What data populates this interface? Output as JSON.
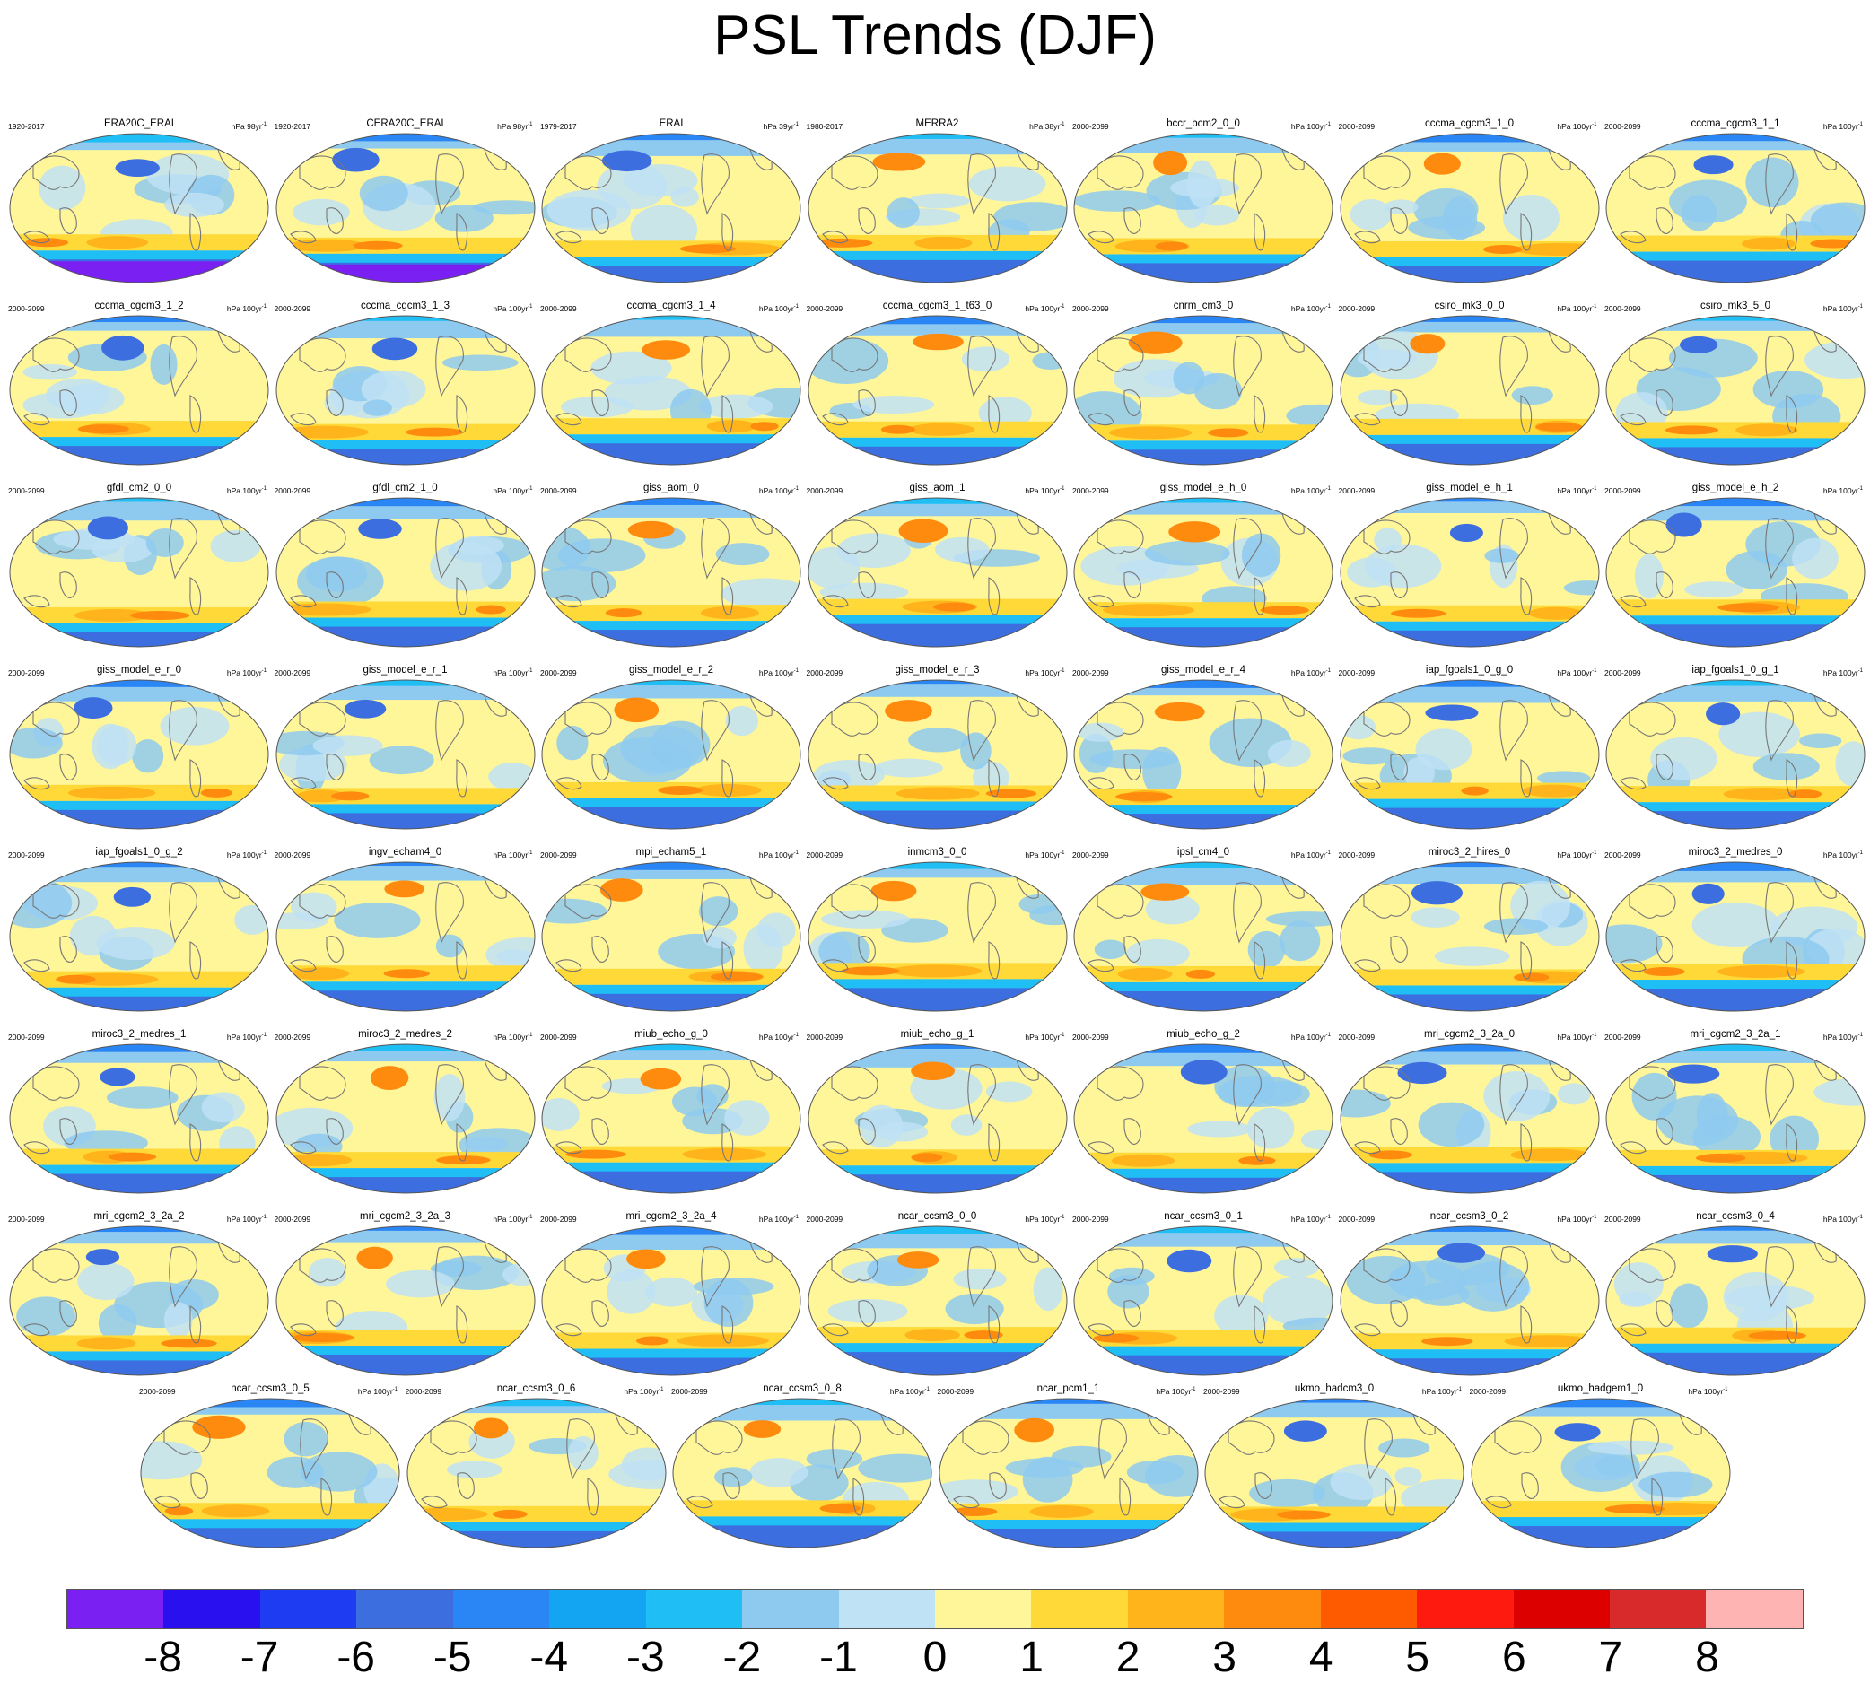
{
  "title": "PSL Trends (DJF)",
  "units_prefix": "hPa",
  "colorbar": {
    "colors": [
      "#7b20f2",
      "#2811ee",
      "#1e3cf2",
      "#3c6ee0",
      "#2b86f5",
      "#14a5f2",
      "#1fbff5",
      "#8ecaf0",
      "#bfe2f5",
      "#fff599",
      "#fed938",
      "#feb41a",
      "#fe8a0e",
      "#fe5a00",
      "#fe1a0e",
      "#dd0000",
      "#d82a2a",
      "#ffb4b4"
    ],
    "labels": [
      "-8",
      "-7",
      "-6",
      "-5",
      "-4",
      "-3",
      "-2",
      "-1",
      "0",
      "1",
      "2",
      "3",
      "4",
      "5",
      "6",
      "7",
      "8"
    ]
  },
  "panels": [
    {
      "name": "ERA20C_ERAI",
      "period": "1920-2017",
      "units": "hPa 98yr",
      "exp": "-1",
      "row": 0,
      "col": 0
    },
    {
      "name": "CERA20C_ERAI",
      "period": "1920-2017",
      "units": "hPa 98yr",
      "exp": "-1",
      "row": 0,
      "col": 1
    },
    {
      "name": "ERAI",
      "period": "1979-2017",
      "units": "hPa 39yr",
      "exp": "-1",
      "row": 0,
      "col": 2
    },
    {
      "name": "MERRA2",
      "period": "1980-2017",
      "units": "hPa 38yr",
      "exp": "-1",
      "row": 0,
      "col": 3
    },
    {
      "name": "bccr_bcm2_0_0",
      "period": "2000-2099",
      "units": "hPa 100yr",
      "exp": "-1",
      "row": 0,
      "col": 4
    },
    {
      "name": "cccma_cgcm3_1_0",
      "period": "2000-2099",
      "units": "hPa 100yr",
      "exp": "-1",
      "row": 0,
      "col": 5
    },
    {
      "name": "cccma_cgcm3_1_1",
      "period": "2000-2099",
      "units": "hPa 100yr",
      "exp": "-1",
      "row": 0,
      "col": 6
    },
    {
      "name": "cccma_cgcm3_1_2",
      "period": "2000-2099",
      "units": "hPa 100yr",
      "exp": "-1",
      "row": 1,
      "col": 0
    },
    {
      "name": "cccma_cgcm3_1_3",
      "period": "2000-2099",
      "units": "hPa 100yr",
      "exp": "-1",
      "row": 1,
      "col": 1
    },
    {
      "name": "cccma_cgcm3_1_4",
      "period": "2000-2099",
      "units": "hPa 100yr",
      "exp": "-1",
      "row": 1,
      "col": 2
    },
    {
      "name": "cccma_cgcm3_1_t63_0",
      "period": "2000-2099",
      "units": "hPa 100yr",
      "exp": "-1",
      "row": 1,
      "col": 3
    },
    {
      "name": "cnrm_cm3_0",
      "period": "2000-2099",
      "units": "hPa 100yr",
      "exp": "-1",
      "row": 1,
      "col": 4
    },
    {
      "name": "csiro_mk3_0_0",
      "period": "2000-2099",
      "units": "hPa 100yr",
      "exp": "-1",
      "row": 1,
      "col": 5
    },
    {
      "name": "csiro_mk3_5_0",
      "period": "2000-2099",
      "units": "hPa 100yr",
      "exp": "-1",
      "row": 1,
      "col": 6
    },
    {
      "name": "gfdl_cm2_0_0",
      "period": "2000-2099",
      "units": "hPa 100yr",
      "exp": "-1",
      "row": 2,
      "col": 0
    },
    {
      "name": "gfdl_cm2_1_0",
      "period": "2000-2099",
      "units": "hPa 100yr",
      "exp": "-1",
      "row": 2,
      "col": 1
    },
    {
      "name": "giss_aom_0",
      "period": "2000-2099",
      "units": "hPa 100yr",
      "exp": "-1",
      "row": 2,
      "col": 2
    },
    {
      "name": "giss_aom_1",
      "period": "2000-2099",
      "units": "hPa 100yr",
      "exp": "-1",
      "row": 2,
      "col": 3
    },
    {
      "name": "giss_model_e_h_0",
      "period": "2000-2099",
      "units": "hPa 100yr",
      "exp": "-1",
      "row": 2,
      "col": 4
    },
    {
      "name": "giss_model_e_h_1",
      "period": "2000-2099",
      "units": "hPa 100yr",
      "exp": "-1",
      "row": 2,
      "col": 5
    },
    {
      "name": "giss_model_e_h_2",
      "period": "2000-2099",
      "units": "hPa 100yr",
      "exp": "-1",
      "row": 2,
      "col": 6
    },
    {
      "name": "giss_model_e_r_0",
      "period": "2000-2099",
      "units": "hPa 100yr",
      "exp": "-1",
      "row": 3,
      "col": 0
    },
    {
      "name": "giss_model_e_r_1",
      "period": "2000-2099",
      "units": "hPa 100yr",
      "exp": "-1",
      "row": 3,
      "col": 1
    },
    {
      "name": "giss_model_e_r_2",
      "period": "2000-2099",
      "units": "hPa 100yr",
      "exp": "-1",
      "row": 3,
      "col": 2
    },
    {
      "name": "giss_model_e_r_3",
      "period": "2000-2099",
      "units": "hPa 100yr",
      "exp": "-1",
      "row": 3,
      "col": 3
    },
    {
      "name": "giss_model_e_r_4",
      "period": "2000-2099",
      "units": "hPa 100yr",
      "exp": "-1",
      "row": 3,
      "col": 4
    },
    {
      "name": "iap_fgoals1_0_g_0",
      "period": "2000-2099",
      "units": "hPa 100yr",
      "exp": "-1",
      "row": 3,
      "col": 5
    },
    {
      "name": "iap_fgoals1_0_g_1",
      "period": "2000-2099",
      "units": "hPa 100yr",
      "exp": "-1",
      "row": 3,
      "col": 6
    },
    {
      "name": "iap_fgoals1_0_g_2",
      "period": "2000-2099",
      "units": "hPa 100yr",
      "exp": "-1",
      "row": 4,
      "col": 0
    },
    {
      "name": "ingv_echam4_0",
      "period": "2000-2099",
      "units": "hPa 100yr",
      "exp": "-1",
      "row": 4,
      "col": 1
    },
    {
      "name": "mpi_echam5_1",
      "period": "2000-2099",
      "units": "hPa 100yr",
      "exp": "-1",
      "row": 4,
      "col": 2
    },
    {
      "name": "inmcm3_0_0",
      "period": "2000-2099",
      "units": "hPa 100yr",
      "exp": "-1",
      "row": 4,
      "col": 3
    },
    {
      "name": "ipsl_cm4_0",
      "period": "2000-2099",
      "units": "hPa 100yr",
      "exp": "-1",
      "row": 4,
      "col": 4
    },
    {
      "name": "miroc3_2_hires_0",
      "period": "2000-2099",
      "units": "hPa 100yr",
      "exp": "-1",
      "row": 4,
      "col": 5
    },
    {
      "name": "miroc3_2_medres_0",
      "period": "2000-2099",
      "units": "hPa 100yr",
      "exp": "-1",
      "row": 4,
      "col": 6
    },
    {
      "name": "miroc3_2_medres_1",
      "period": "2000-2099",
      "units": "hPa 100yr",
      "exp": "-1",
      "row": 5,
      "col": 0
    },
    {
      "name": "miroc3_2_medres_2",
      "period": "2000-2099",
      "units": "hPa 100yr",
      "exp": "-1",
      "row": 5,
      "col": 1
    },
    {
      "name": "miub_echo_g_0",
      "period": "2000-2099",
      "units": "hPa 100yr",
      "exp": "-1",
      "row": 5,
      "col": 2
    },
    {
      "name": "miub_echo_g_1",
      "period": "2000-2099",
      "units": "hPa 100yr",
      "exp": "-1",
      "row": 5,
      "col": 3
    },
    {
      "name": "miub_echo_g_2",
      "period": "2000-2099",
      "units": "hPa 100yr",
      "exp": "-1",
      "row": 5,
      "col": 4
    },
    {
      "name": "mri_cgcm2_3_2a_0",
      "period": "2000-2099",
      "units": "hPa 100yr",
      "exp": "-1",
      "row": 5,
      "col": 5
    },
    {
      "name": "mri_cgcm2_3_2a_1",
      "period": "2000-2099",
      "units": "hPa 100yr",
      "exp": "-1",
      "row": 5,
      "col": 6
    },
    {
      "name": "mri_cgcm2_3_2a_2",
      "period": "2000-2099",
      "units": "hPa 100yr",
      "exp": "-1",
      "row": 6,
      "col": 0
    },
    {
      "name": "mri_cgcm2_3_2a_3",
      "period": "2000-2099",
      "units": "hPa 100yr",
      "exp": "-1",
      "row": 6,
      "col": 1
    },
    {
      "name": "mri_cgcm2_3_2a_4",
      "period": "2000-2099",
      "units": "hPa 100yr",
      "exp": "-1",
      "row": 6,
      "col": 2
    },
    {
      "name": "ncar_ccsm3_0_0",
      "period": "2000-2099",
      "units": "hPa 100yr",
      "exp": "-1",
      "row": 6,
      "col": 3
    },
    {
      "name": "ncar_ccsm3_0_1",
      "period": "2000-2099",
      "units": "hPa 100yr",
      "exp": "-1",
      "row": 6,
      "col": 4
    },
    {
      "name": "ncar_ccsm3_0_2",
      "period": "2000-2099",
      "units": "hPa 100yr",
      "exp": "-1",
      "row": 6,
      "col": 5
    },
    {
      "name": "ncar_ccsm3_0_4",
      "period": "2000-2099",
      "units": "hPa 100yr",
      "exp": "-1",
      "row": 6,
      "col": 6
    },
    {
      "name": "ncar_ccsm3_0_5",
      "period": "2000-2099",
      "units": "hPa 100yr",
      "exp": "-1",
      "row": 7,
      "col": 0
    },
    {
      "name": "ncar_ccsm3_0_6",
      "period": "2000-2099",
      "units": "hPa 100yr",
      "exp": "-1",
      "row": 7,
      "col": 1
    },
    {
      "name": "ncar_ccsm3_0_8",
      "period": "2000-2099",
      "units": "hPa 100yr",
      "exp": "-1",
      "row": 7,
      "col": 2
    },
    {
      "name": "ncar_pcm1_1",
      "period": "2000-2099",
      "units": "hPa 100yr",
      "exp": "-1",
      "row": 7,
      "col": 3
    },
    {
      "name": "ukmo_hadcm3_0",
      "period": "2000-2099",
      "units": "hPa 100yr",
      "exp": "-1",
      "row": 7,
      "col": 4
    },
    {
      "name": "ukmo_hadgem1_0",
      "period": "2000-2099",
      "units": "hPa 100yr",
      "exp": "-1",
      "row": 7,
      "col": 5
    }
  ]
}
